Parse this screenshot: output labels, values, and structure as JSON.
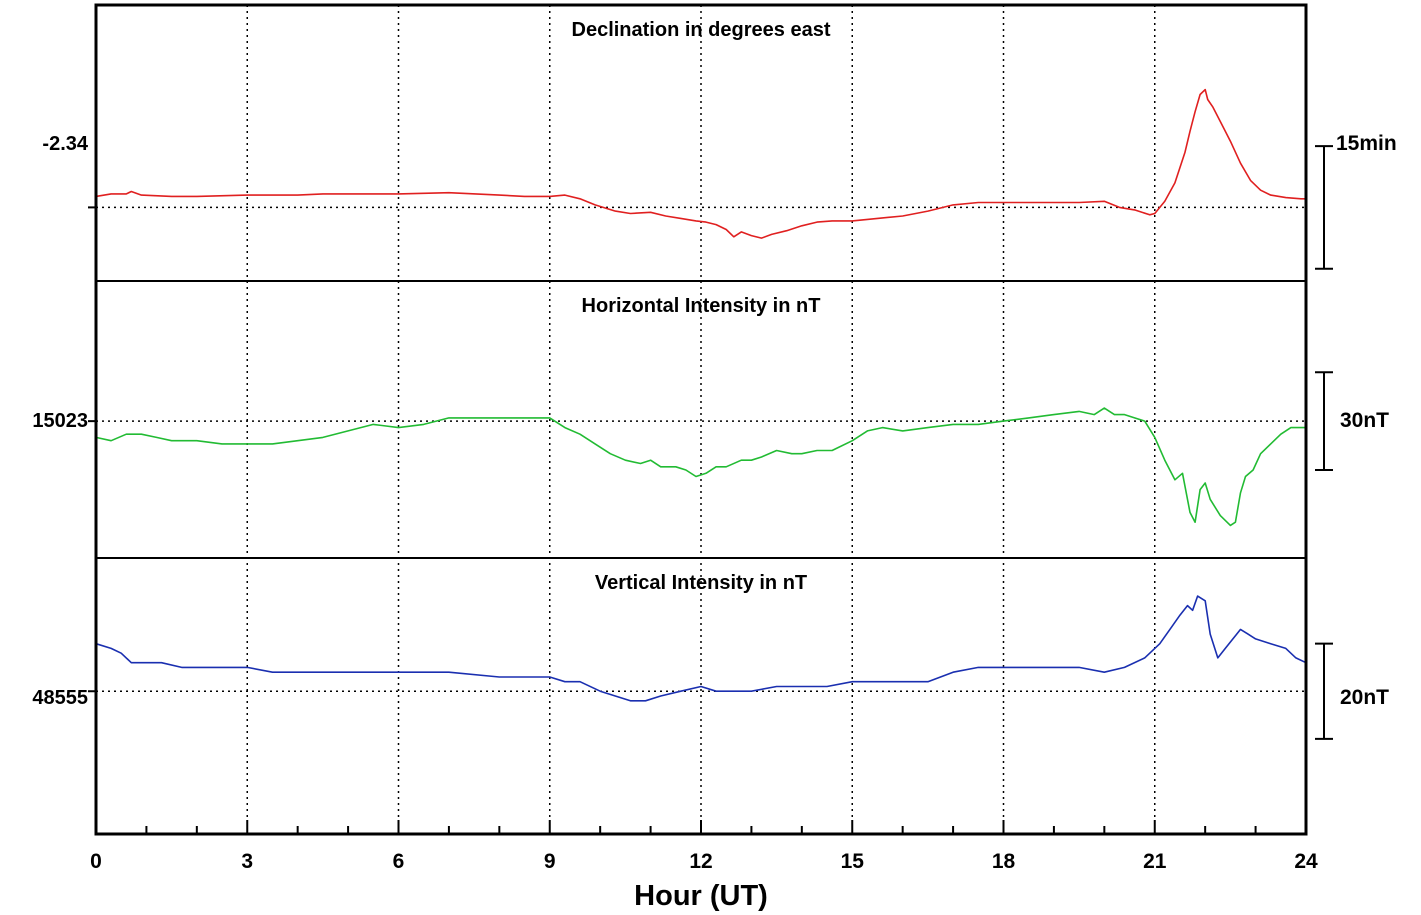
{
  "chart_data": {
    "type": "line",
    "xlabel": "Hour (UT)",
    "xlim": [
      0,
      24
    ],
    "xticks": [
      0,
      3,
      6,
      9,
      12,
      15,
      18,
      21,
      24
    ],
    "xtick_labels": [
      "0",
      "3",
      "6",
      "9",
      "12",
      "15",
      "18",
      "21",
      "24"
    ],
    "grid": true,
    "panels": [
      {
        "title": "Declination in degrees east",
        "reference_label": "-2.34",
        "scale_label": "15min",
        "color": "#e02020",
        "ylim": [
          -0.6,
          1.65
        ],
        "ref_value": 0,
        "scale_bar": [
          -0.5,
          0.5
        ],
        "series": {
          "x": [
            0,
            0.3,
            0.6,
            0.7,
            0.9,
            1.5,
            2,
            3,
            4,
            4.5,
            5,
            6,
            7,
            8,
            8.5,
            9,
            9.3,
            9.6,
            9.9,
            10.3,
            10.6,
            11,
            11.3,
            11.6,
            11.9,
            12.1,
            12.3,
            12.5,
            12.65,
            12.8,
            13,
            13.2,
            13.4,
            13.7,
            14,
            14.3,
            14.6,
            15,
            15.5,
            16,
            16.5,
            17,
            17.5,
            18,
            18.5,
            19,
            19.5,
            20,
            20.3,
            20.6,
            20.9,
            21,
            21.2,
            21.4,
            21.6,
            21.7,
            21.8,
            21.9,
            22,
            22.05,
            22.15,
            22.3,
            22.5,
            22.7,
            22.9,
            23.1,
            23.3,
            23.6,
            23.9,
            24
          ],
          "y": [
            0.09,
            0.11,
            0.11,
            0.13,
            0.1,
            0.09,
            0.09,
            0.1,
            0.1,
            0.11,
            0.11,
            0.11,
            0.12,
            0.1,
            0.09,
            0.09,
            0.1,
            0.07,
            0.02,
            -0.03,
            -0.05,
            -0.04,
            -0.07,
            -0.09,
            -0.11,
            -0.12,
            -0.14,
            -0.18,
            -0.24,
            -0.2,
            -0.23,
            -0.25,
            -0.22,
            -0.19,
            -0.15,
            -0.12,
            -0.11,
            -0.11,
            -0.09,
            -0.07,
            -0.03,
            0.02,
            0.04,
            0.04,
            0.04,
            0.04,
            0.04,
            0.05,
            0.0,
            -0.02,
            -0.06,
            -0.05,
            0.05,
            0.2,
            0.45,
            0.62,
            0.78,
            0.92,
            0.96,
            0.88,
            0.82,
            0.7,
            0.54,
            0.36,
            0.22,
            0.14,
            0.1,
            0.08,
            0.07,
            0.07
          ]
        }
      },
      {
        "title": "Horizontal Intensity in nT",
        "reference_label": "15023",
        "scale_label": "30nT",
        "color": "#22bb33",
        "ylim": [
          -42,
          43
        ],
        "ref_value": 0,
        "scale_bar": [
          -15,
          15
        ],
        "series": {
          "x": [
            0,
            0.3,
            0.6,
            0.9,
            1.2,
            1.5,
            2,
            2.5,
            3,
            3.5,
            4,
            4.5,
            5,
            5.5,
            6,
            6.5,
            7,
            7.5,
            8,
            8.5,
            9,
            9.3,
            9.6,
            9.9,
            10.2,
            10.5,
            10.8,
            11,
            11.2,
            11.5,
            11.7,
            11.9,
            12.1,
            12.3,
            12.5,
            12.8,
            13,
            13.2,
            13.5,
            13.8,
            14,
            14.3,
            14.6,
            15,
            15.3,
            15.6,
            16,
            16.5,
            17,
            17.5,
            18,
            18.5,
            19,
            19.5,
            19.8,
            20,
            20.2,
            20.4,
            20.6,
            20.8,
            21,
            21.2,
            21.4,
            21.55,
            21.7,
            21.8,
            21.9,
            22,
            22.1,
            22.3,
            22.5,
            22.6,
            22.7,
            22.8,
            22.95,
            23.1,
            23.3,
            23.5,
            23.7,
            23.9,
            24
          ],
          "y": [
            -5,
            -6,
            -4,
            -4,
            -5,
            -6,
            -6,
            -7,
            -7,
            -7,
            -6,
            -5,
            -3,
            -1,
            -2,
            -1,
            1,
            1,
            1,
            1,
            1,
            -2,
            -4,
            -7,
            -10,
            -12,
            -13,
            -12,
            -14,
            -14,
            -15,
            -17,
            -16,
            -14,
            -14,
            -12,
            -12,
            -11,
            -9,
            -10,
            -10,
            -9,
            -9,
            -6,
            -3,
            -2,
            -3,
            -2,
            -1,
            -1,
            0,
            1,
            2,
            3,
            2,
            4,
            2,
            2,
            1,
            0,
            -5,
            -12,
            -18,
            -16,
            -28,
            -31,
            -21,
            -19,
            -24,
            -29,
            -32,
            -31,
            -22,
            -17,
            -15,
            -10,
            -7,
            -4,
            -2,
            -2,
            -2
          ]
        }
      },
      {
        "title": "Vertical Intensity in nT",
        "reference_label": "48555",
        "scale_label": "20nT",
        "color": "#1a2fb0",
        "ylim": [
          -30,
          28
        ],
        "ref_value": 0,
        "scale_bar": [
          -10,
          10
        ],
        "series": {
          "x": [
            0,
            0.3,
            0.5,
            0.7,
            1,
            1.3,
            1.7,
            2,
            2.5,
            3,
            3.5,
            4,
            5,
            6,
            7,
            8,
            8.5,
            9,
            9.3,
            9.6,
            10,
            10.3,
            10.6,
            10.9,
            11.2,
            11.6,
            12,
            12.3,
            12.6,
            13,
            13.5,
            14,
            14.5,
            15,
            15.3,
            15.6,
            16,
            16.5,
            17,
            17.5,
            18,
            18.5,
            19,
            19.5,
            20,
            20.4,
            20.8,
            21.1,
            21.3,
            21.5,
            21.65,
            21.75,
            21.85,
            22,
            22.1,
            22.25,
            22.4,
            22.55,
            22.7,
            22.85,
            23,
            23.3,
            23.6,
            23.8,
            24
          ],
          "y": [
            10,
            9,
            8,
            6,
            6,
            6,
            5,
            5,
            5,
            5,
            4,
            4,
            4,
            4,
            4,
            3,
            3,
            3,
            2,
            2,
            0,
            -1,
            -2,
            -2,
            -1,
            0,
            1,
            0,
            0,
            0,
            1,
            1,
            1,
            2,
            2,
            2,
            2,
            2,
            4,
            5,
            5,
            5,
            5,
            5,
            4,
            5,
            7,
            10,
            13,
            16,
            18,
            17,
            20,
            19,
            12,
            7,
            9,
            11,
            13,
            12,
            11,
            10,
            9,
            7,
            6
          ]
        }
      }
    ]
  }
}
